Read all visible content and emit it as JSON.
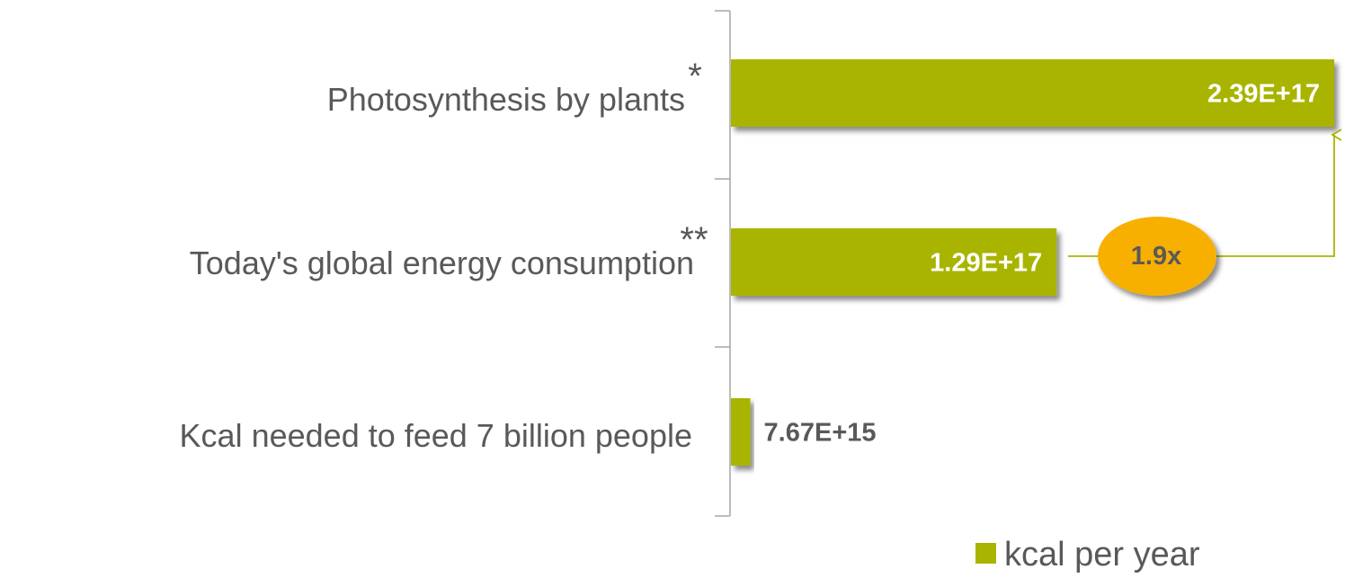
{
  "chart_data": {
    "type": "bar",
    "orientation": "horizontal",
    "categories": [
      "Photosynthesis by plants",
      "Today's global energy consumption",
      "Kcal needed to feed 7 billion people"
    ],
    "footnote_marks": [
      "*",
      "**",
      ""
    ],
    "series": [
      {
        "name": "kcal per year",
        "values": [
          2.39e+17,
          1.29e+17,
          7670000000000000.0
        ],
        "labels": [
          "2.39E+17",
          "1.29E+17",
          "7.67E+15"
        ]
      }
    ],
    "xlim": [
      0,
      2.39e+17
    ],
    "grid": false,
    "legend_position": "bottom-right",
    "annotation": {
      "text": "1.9x",
      "from": "Today's global energy consumption",
      "to": "Photosynthesis by plants"
    }
  },
  "colors": {
    "bar": "#A9B400",
    "ratio_ellipse": "#F7B000",
    "axis": "#A6A6A6",
    "text": "#595959"
  }
}
